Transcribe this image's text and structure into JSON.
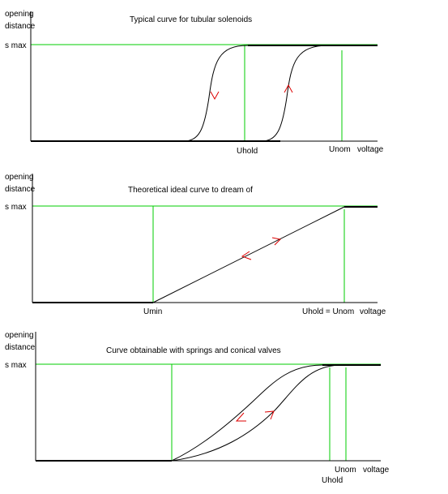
{
  "panels": [
    {
      "title": "Typical curve for tubular solenoids",
      "ylabel_1": "opening",
      "ylabel_2": "distance",
      "ymax_label": "s max",
      "x_labels": [
        "Uhold",
        "Unom",
        "voltage"
      ]
    },
    {
      "title": "Theoretical ideal curve to dream of",
      "ylabel_1": "opening",
      "ylabel_2": "distance",
      "ymax_label": "s max",
      "x_labels": [
        "Umin",
        "Uhold = Unom",
        "voltage"
      ]
    },
    {
      "title": "Curve obtainable with springs and conical valves",
      "ylabel_1": "opening",
      "ylabel_2": "distance",
      "ymax_label": "s max",
      "x_labels": [
        "Unom",
        "voltage",
        "Uhold"
      ]
    }
  ],
  "colors": {
    "axis": "#000000",
    "curve": "#000000",
    "guide": "#00cc00",
    "arrow": "#dd0000"
  }
}
